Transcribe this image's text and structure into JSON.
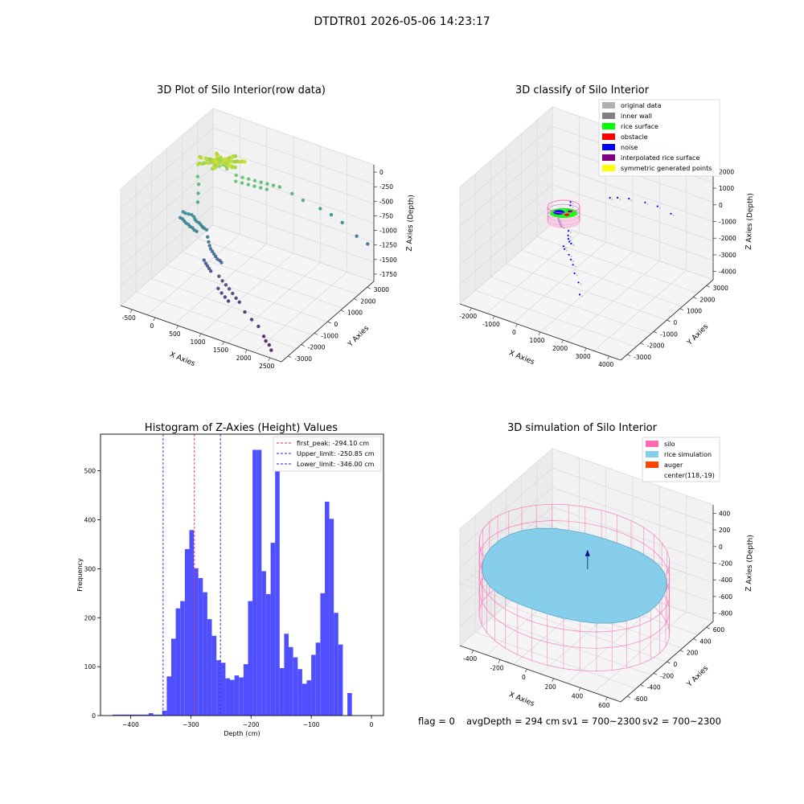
{
  "suptitle": "DTDTR01 2026-05-06 14:23:17",
  "footer": {
    "flag": "flag = 0",
    "avg_depth": "avgDepth = 294 cm",
    "sv1": "sv1 = 700~2300",
    "sv2": "sv2 = 700~2300"
  },
  "colors": {
    "hist_bar": "#4f4fff",
    "peak_line": "#e03030",
    "limit_line": "#2020e0",
    "silo": "#ff69b4",
    "rice_sim": "#87ceeb",
    "auger": "#ff4500",
    "inner_wall": "#808080",
    "rice_surface": "#00ff00",
    "obstacle": "#ff0000",
    "noise": "#0000ff",
    "interpolated": "#800080",
    "symmetric": "#ffff00",
    "original": "#b0b0b0"
  },
  "chart_data": [
    {
      "type": "scatter",
      "id": "raw",
      "title": "3D Plot of Silo Interior(row data)",
      "xlabel": "X Axies",
      "ylabel": "Y Axies",
      "zlabel": "Z Axies (Depth)",
      "x_ticks": [
        "-500",
        "0",
        "500",
        "1000",
        "1500",
        "2000",
        "2500"
      ],
      "y_ticks": [
        "3000",
        "2000",
        "1000",
        "0",
        "-1000",
        "-2000",
        "-3000"
      ],
      "z_ticks": [
        "0",
        "-250",
        "-500",
        "-750",
        "-1000",
        "-1250",
        "-1500",
        "-1750"
      ],
      "xlim": [
        -650,
        2700
      ],
      "ylim": [
        -3300,
        3300
      ],
      "zlim": [
        -1950,
        100
      ],
      "colormap": "viridis (by depth)",
      "points": [
        [
          -100,
          1600,
          -270
        ],
        [
          -60,
          1550,
          -280
        ],
        [
          0,
          1500,
          -260
        ],
        [
          40,
          1650,
          -250
        ],
        [
          80,
          1500,
          -290
        ],
        [
          -40,
          1700,
          -300
        ],
        [
          20,
          1450,
          -320
        ],
        [
          100,
          1600,
          -310
        ],
        [
          120,
          1550,
          -270
        ],
        [
          -80,
          1450,
          -330
        ],
        [
          60,
          1700,
          -240
        ],
        [
          10,
          1600,
          -200
        ],
        [
          -20,
          1650,
          -230
        ],
        [
          150,
          1500,
          -300
        ],
        [
          180,
          1450,
          -320
        ],
        [
          300,
          1700,
          -450
        ],
        [
          400,
          1800,
          -480
        ],
        [
          500,
          1900,
          -500
        ],
        [
          600,
          2000,
          -520
        ],
        [
          700,
          2100,
          -540
        ],
        [
          800,
          2200,
          -560
        ],
        [
          900,
          2300,
          -580
        ],
        [
          1000,
          2400,
          -600
        ],
        [
          350,
          1500,
          -500
        ],
        [
          450,
          1600,
          -520
        ],
        [
          550,
          1700,
          -540
        ],
        [
          650,
          1800,
          -560
        ],
        [
          750,
          1900,
          -580
        ],
        [
          850,
          2000,
          -600
        ],
        [
          1200,
          2600,
          -700
        ],
        [
          1400,
          2700,
          -780
        ],
        [
          1700,
          2900,
          -880
        ],
        [
          1900,
          3000,
          -950
        ],
        [
          2100,
          3100,
          -1050
        ],
        [
          2400,
          3100,
          -1200
        ],
        [
          2600,
          3200,
          -1300
        ],
        [
          -300,
          1000,
          -500
        ],
        [
          -250,
          900,
          -600
        ],
        [
          -200,
          700,
          -700
        ],
        [
          -150,
          500,
          -800
        ],
        [
          -400,
          300,
          -1000
        ],
        [
          -350,
          300,
          -1010
        ],
        [
          -300,
          350,
          -1020
        ],
        [
          -250,
          400,
          -1030
        ],
        [
          -200,
          400,
          -1050
        ],
        [
          -150,
          300,
          -1060
        ],
        [
          -100,
          250,
          -1070
        ],
        [
          -50,
          250,
          -1080
        ],
        [
          0,
          200,
          -1090
        ],
        [
          50,
          150,
          -1100
        ],
        [
          100,
          100,
          -1100
        ],
        [
          150,
          100,
          -1110
        ],
        [
          -400,
          100,
          -1060
        ],
        [
          -350,
          100,
          -1070
        ],
        [
          -300,
          50,
          -1080
        ],
        [
          -250,
          0,
          -1090
        ],
        [
          -200,
          0,
          -1100
        ],
        [
          -150,
          -50,
          -1110
        ],
        [
          -100,
          -50,
          -1120
        ],
        [
          -50,
          -100,
          -1130
        ],
        [
          0,
          -100,
          -1140
        ],
        [
          200,
          0,
          -1200
        ],
        [
          250,
          -100,
          -1250
        ],
        [
          300,
          -200,
          -1280
        ],
        [
          350,
          -300,
          -1300
        ],
        [
          400,
          -350,
          -1320
        ],
        [
          450,
          -400,
          -1340
        ],
        [
          500,
          -450,
          -1360
        ],
        [
          550,
          -500,
          -1380
        ],
        [
          600,
          -500,
          -1390
        ],
        [
          650,
          -550,
          -1400
        ],
        [
          300,
          -600,
          -1450
        ],
        [
          350,
          -650,
          -1480
        ],
        [
          400,
          -700,
          -1500
        ],
        [
          450,
          -750,
          -1520
        ],
        [
          500,
          -800,
          -1540
        ],
        [
          700,
          -900,
          -1550
        ],
        [
          800,
          -1000,
          -1580
        ],
        [
          900,
          -1100,
          -1600
        ],
        [
          1000,
          -1200,
          -1620
        ],
        [
          1100,
          -1300,
          -1650
        ],
        [
          1200,
          -1400,
          -1680
        ],
        [
          1300,
          -1500,
          -1700
        ],
        [
          800,
          -1300,
          -1650
        ],
        [
          900,
          -1400,
          -1680
        ],
        [
          1000,
          -1500,
          -1700
        ],
        [
          1100,
          -1600,
          -1720
        ],
        [
          1500,
          -1800,
          -1750
        ],
        [
          1700,
          -2000,
          -1780
        ],
        [
          1900,
          -2200,
          -1800
        ],
        [
          2100,
          -2500,
          -1850
        ],
        [
          2300,
          -2800,
          -1880
        ],
        [
          2200,
          -2700,
          -1860
        ],
        [
          2400,
          -3000,
          -1900
        ]
      ]
    },
    {
      "type": "scatter",
      "id": "classify",
      "title": "3D classify of Silo Interior",
      "xlabel": "X Axies",
      "ylabel": "Y Axies",
      "zlabel": "Z Axies (Depth)",
      "x_ticks": [
        "-2000",
        "-1000",
        "0",
        "1000",
        "2000",
        "3000",
        "4000"
      ],
      "y_ticks": [
        "3000",
        "2000",
        "1000",
        "0",
        "-1000",
        "-2000",
        "-3000"
      ],
      "z_ticks": [
        "2000",
        "1000",
        "0",
        "-1000",
        "-2000",
        "-3000",
        "-4000"
      ],
      "xlim": [
        -2400,
        4300
      ],
      "ylim": [
        -3300,
        3300
      ],
      "zlim": [
        -4300,
        2300
      ],
      "legend": [
        {
          "label": "original data",
          "color_key": "original"
        },
        {
          "label": "inner wall",
          "color_key": "inner_wall"
        },
        {
          "label": "rice surface",
          "color_key": "rice_surface"
        },
        {
          "label": "obstacle",
          "color_key": "obstacle"
        },
        {
          "label": "noise",
          "color_key": "noise"
        },
        {
          "label": "interpolated rice surface",
          "color_key": "interpolated"
        },
        {
          "label": "symmetric generated points",
          "color_key": "symmetric"
        }
      ],
      "rice_surface_depth": -294,
      "silo_radius": 700,
      "noise_points": [
        [
          -300,
          1000,
          -500
        ],
        [
          -250,
          900,
          -600
        ],
        [
          -200,
          700,
          -700
        ],
        [
          -400,
          300,
          -1000
        ],
        [
          -350,
          250,
          -1020
        ],
        [
          -300,
          200,
          -1050
        ],
        [
          -250,
          150,
          -1070
        ],
        [
          -200,
          100,
          -1080
        ],
        [
          -150,
          50,
          -1090
        ],
        [
          -100,
          0,
          -1100
        ],
        [
          200,
          0,
          -1200
        ],
        [
          300,
          -200,
          -1280
        ],
        [
          400,
          -350,
          -1320
        ],
        [
          500,
          -450,
          -1360
        ],
        [
          600,
          -500,
          -1390
        ],
        [
          400,
          -700,
          -1500
        ],
        [
          500,
          -800,
          -1540
        ],
        [
          800,
          -1000,
          -1580
        ],
        [
          1000,
          -1200,
          -1620
        ],
        [
          1200,
          -1400,
          -1680
        ],
        [
          1500,
          -1800,
          -1750
        ],
        [
          1900,
          -2200,
          -1800
        ],
        [
          2300,
          -2800,
          -1880
        ],
        [
          700,
          2100,
          -540
        ],
        [
          900,
          2300,
          -580
        ],
        [
          1200,
          2600,
          -700
        ],
        [
          1700,
          2900,
          -880
        ],
        [
          2100,
          3100,
          -1050
        ],
        [
          2600,
          3200,
          -1300
        ]
      ]
    },
    {
      "type": "bar",
      "id": "hist",
      "title": "Histogram of Z-Axies (Height) Values",
      "xlabel": "Depth (cm)",
      "ylabel": "Frequency",
      "xlim": [
        -450,
        20
      ],
      "ylim": [
        0,
        575
      ],
      "x_ticks": [
        -400,
        -300,
        -200,
        -100,
        0
      ],
      "y_ticks": [
        0,
        100,
        200,
        300,
        400,
        500
      ],
      "bin_width": 7.5,
      "bins": [
        [
          -430,
          2
        ],
        [
          -422.5,
          2
        ],
        [
          -415,
          2
        ],
        [
          -407.5,
          2
        ],
        [
          -400,
          2
        ],
        [
          -392.5,
          2
        ],
        [
          -385,
          2
        ],
        [
          -377.5,
          2
        ],
        [
          -370,
          5
        ],
        [
          -362.5,
          2
        ],
        [
          -355,
          2
        ],
        [
          -347.5,
          10
        ],
        [
          -340,
          80
        ],
        [
          -332.5,
          157
        ],
        [
          -325,
          219
        ],
        [
          -317.5,
          234
        ],
        [
          -310,
          340
        ],
        [
          -302.5,
          379
        ],
        [
          -295,
          301
        ],
        [
          -287.5,
          281
        ],
        [
          -280,
          252
        ],
        [
          -272.5,
          197
        ],
        [
          -265,
          163
        ],
        [
          -257.5,
          113
        ],
        [
          -250,
          108
        ],
        [
          -242.5,
          76
        ],
        [
          -235,
          73
        ],
        [
          -227.5,
          82
        ],
        [
          -220,
          78
        ],
        [
          -212.5,
          105
        ],
        [
          -205,
          234
        ],
        [
          -197.5,
          543
        ],
        [
          -190,
          543
        ],
        [
          -182.5,
          295
        ],
        [
          -175,
          248
        ],
        [
          -167.5,
          353
        ],
        [
          -160,
          522
        ],
        [
          -152.5,
          97
        ],
        [
          -145,
          167
        ],
        [
          -137.5,
          140
        ],
        [
          -130,
          119
        ],
        [
          -122.5,
          95
        ],
        [
          -115,
          65
        ],
        [
          -107.5,
          72
        ],
        [
          -100,
          124
        ],
        [
          -92.5,
          149
        ],
        [
          -85,
          250
        ],
        [
          -77.5,
          437
        ],
        [
          -70,
          402
        ],
        [
          -62.5,
          210
        ],
        [
          -55,
          145
        ],
        [
          -40,
          46
        ]
      ],
      "lines": [
        {
          "label": "first_peak: -294.10 cm",
          "x": -294.1,
          "color_key": "peak_line"
        },
        {
          "label": "Upper_limit: -250.85 cm",
          "x": -250.85,
          "color_key": "limit_line"
        },
        {
          "label": "Lower_limit: -346.00 cm",
          "x": -346.0,
          "color_key": "limit_line"
        }
      ]
    },
    {
      "type": "area",
      "id": "sim",
      "title": "3D simulation of Silo Interior",
      "xlabel": "X Axies",
      "ylabel": "Y Axies",
      "zlabel": "Z Axies (Depth)",
      "x_ticks": [
        "-400",
        "-200",
        "0",
        "200",
        "400",
        "600"
      ],
      "y_ticks": [
        "600",
        "400",
        "200",
        "0",
        "-200",
        "-400",
        "-600"
      ],
      "z_ticks": [
        "400",
        "200",
        "0",
        "-200",
        "-400",
        "-600",
        "-800"
      ],
      "xlim": [
        -560,
        760
      ],
      "ylim": [
        -760,
        760
      ],
      "zlim": [
        -950,
        480
      ],
      "legend": [
        {
          "label": "silo",
          "color_key": "silo"
        },
        {
          "label": "rice simulation",
          "color_key": "rice_sim"
        },
        {
          "label": "auger",
          "color_key": "auger"
        },
        {
          "label": "center(118,-19)",
          "color_key": ""
        }
      ],
      "silo_radius": 700,
      "silo_top": 0,
      "silo_bottom": -880,
      "rice_depth": -294
    }
  ]
}
